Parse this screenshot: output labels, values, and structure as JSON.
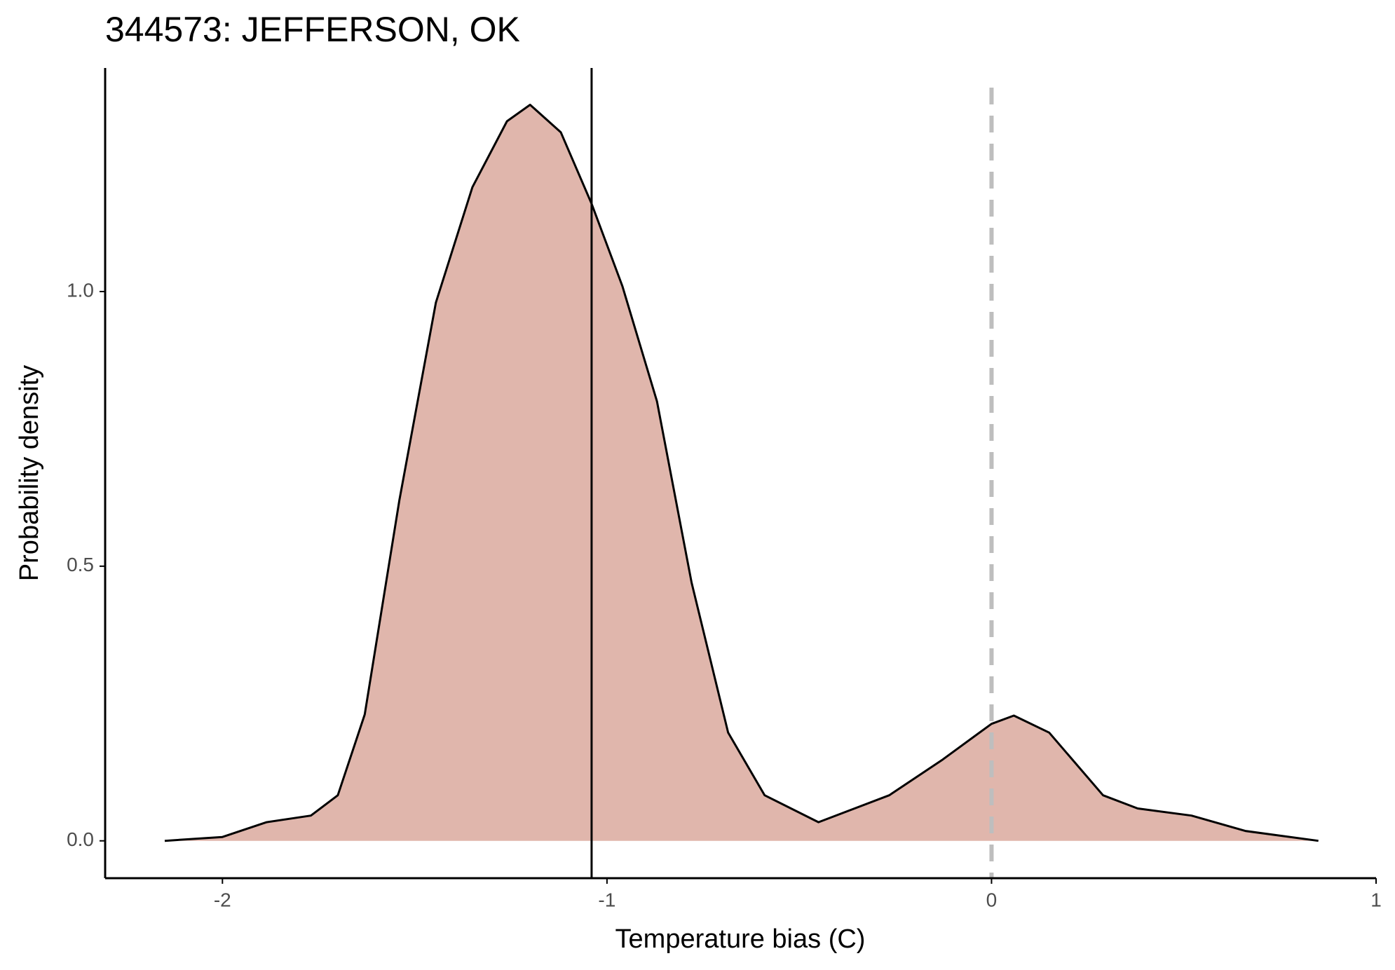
{
  "chart_data": {
    "type": "density",
    "title": "344573: JEFFERSON, OK",
    "xlabel": "Temperature bias (C)",
    "ylabel": "Probability density",
    "x": [
      -2.15,
      -2.0,
      -1.885,
      -1.77,
      -1.7,
      -1.63,
      -1.54,
      -1.445,
      -1.35,
      -1.26,
      -1.2,
      -1.12,
      -1.04,
      -0.96,
      -0.87,
      -0.78,
      -0.685,
      -0.59,
      -0.45,
      -0.266,
      -0.127,
      0,
      0.058,
      0.15,
      0.29,
      0.38,
      0.52,
      0.66,
      0.85
    ],
    "values": [
      0,
      0.007,
      0.034,
      0.046,
      0.083,
      0.23,
      0.62,
      0.98,
      1.19,
      1.31,
      1.34,
      1.29,
      1.16,
      1.01,
      0.8,
      0.47,
      0.197,
      0.083,
      0.034,
      0.083,
      0.148,
      0.213,
      0.228,
      0.197,
      0.083,
      0.059,
      0.046,
      0.018,
      0
    ],
    "color": "#e0b6ac",
    "line_color": "#000000",
    "reference_lines": [
      {
        "x": -1.04,
        "style": "solid",
        "color": "#000000"
      },
      {
        "x": 0,
        "style": "dashed",
        "color": "#bebebe"
      }
    ],
    "xlim": [
      -2.305,
      1
    ],
    "ylim": [
      -0.068,
      1.407
    ],
    "xticks": [
      -2,
      -1,
      0,
      1
    ],
    "yticks": [
      {
        "value": 0,
        "label": "0.0"
      },
      0.5,
      {
        "value": 1,
        "label": "1.0"
      }
    ],
    "grid": false
  }
}
